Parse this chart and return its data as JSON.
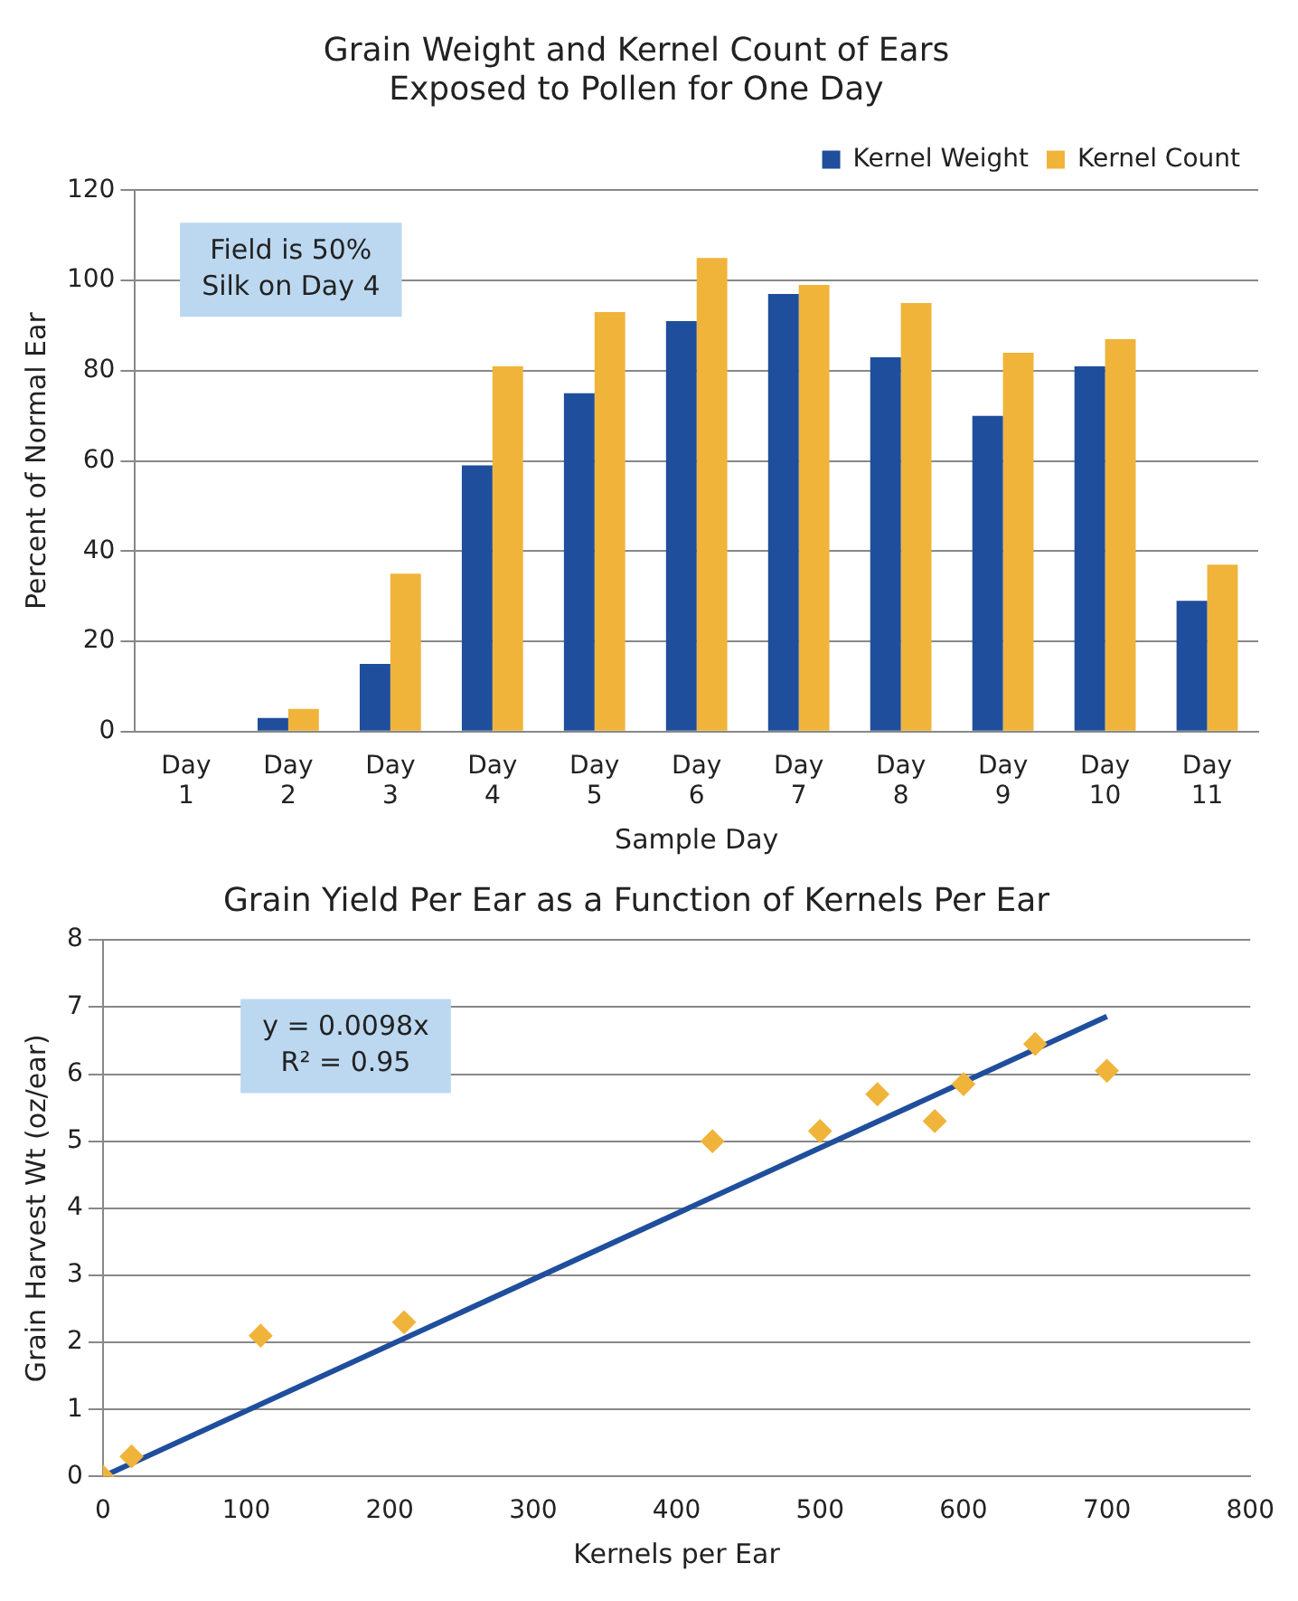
{
  "chart_data": [
    {
      "type": "bar",
      "title": "Grain Weight and Kernel Count of Ears\nExposed to Pollen for One Day",
      "xlabel": "Sample Day",
      "ylabel": "Percent of Normal Ear",
      "categories": [
        "Day 1",
        "Day 2",
        "Day 3",
        "Day 4",
        "Day 5",
        "Day 6",
        "Day 7",
        "Day 8",
        "Day 9",
        "Day 10",
        "Day 11"
      ],
      "series": [
        {
          "name": "Kernel Weight",
          "color": "#1f4e9c",
          "values": [
            0,
            3,
            15,
            59,
            75,
            91,
            97,
            83,
            70,
            81,
            29
          ]
        },
        {
          "name": "Kernel Count",
          "color": "#f0b43a",
          "values": [
            0,
            5,
            35,
            81,
            93,
            105,
            99,
            95,
            84,
            87,
            37
          ]
        }
      ],
      "ylim": [
        0,
        120
      ],
      "yticks": [
        0,
        20,
        40,
        60,
        80,
        100,
        120
      ],
      "grid": "y",
      "legend": "top right",
      "annotations": [
        "Field is 50%\nSilk on Day 4"
      ]
    },
    {
      "type": "scatter",
      "title": "Grain Yield Per Ear as a Function of Kernels Per Ear",
      "xlabel": "Kernels per Ear",
      "ylabel": "Grain Harvest Wt (oz/ear)",
      "series": [
        {
          "type": "scatter",
          "color": "#f0b43a",
          "marker": "diamond",
          "x": [
            0,
            20,
            110,
            210,
            425,
            500,
            540,
            580,
            600,
            650,
            700
          ],
          "values": [
            0,
            0.3,
            2.1,
            2.3,
            5.0,
            5.15,
            5.7,
            5.3,
            5.85,
            6.45,
            6.05
          ]
        },
        {
          "type": "line",
          "color": "#1f4e9c",
          "marker": "none",
          "x": [
            0,
            700
          ],
          "values": [
            0,
            6.86
          ]
        }
      ],
      "xlim": [
        0,
        800
      ],
      "xticks": [
        0,
        100,
        200,
        300,
        400,
        500,
        600,
        700,
        800
      ],
      "ylim": [
        0,
        8
      ],
      "yticks": [
        0,
        1,
        2,
        3,
        4,
        5,
        6,
        7,
        8
      ],
      "grid": "y",
      "annotations": [
        "y = 0.0098x\nR² = 0.95"
      ]
    }
  ]
}
